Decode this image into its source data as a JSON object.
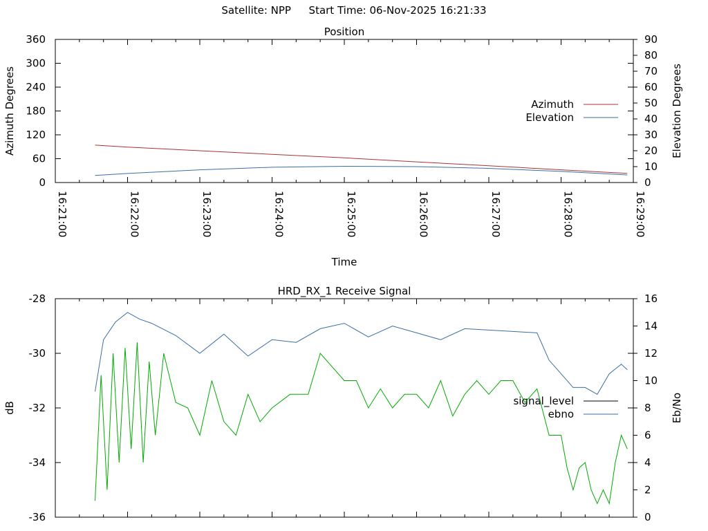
{
  "header": {
    "satellite_label": "Satellite: NPP",
    "start_time_label": "Start Time: 06-Nov-2025 16:21:33"
  },
  "chart_data": [
    {
      "type": "line",
      "title": "Position",
      "xlabel": "Time",
      "ylabel": "Azimuth Degrees",
      "y2label": "Elevation Degrees",
      "x_ticks": [
        "16:21:00",
        "16:22:00",
        "16:23:00",
        "16:24:00",
        "16:25:00",
        "16:26:00",
        "16:27:00",
        "16:28:00",
        "16:29:00"
      ],
      "xlim": [
        "16:21:00",
        "16:29:00"
      ],
      "ylim": [
        0,
        360
      ],
      "y_ticks": [
        0,
        60,
        120,
        180,
        240,
        300,
        360
      ],
      "y2lim": [
        0,
        90
      ],
      "y2_ticks": [
        0,
        10,
        20,
        30,
        40,
        50,
        60,
        70,
        80,
        90
      ],
      "legend_position": "right",
      "grid": false,
      "series": [
        {
          "name": "Azimuth",
          "axis": "left",
          "color": "#a83232",
          "x": [
            "16:21:33",
            "16:22:00",
            "16:23:00",
            "16:24:00",
            "16:25:00",
            "16:26:00",
            "16:27:00",
            "16:28:00",
            "16:28:55"
          ],
          "values": [
            94,
            89,
            80,
            71,
            62,
            52,
            42,
            32,
            23
          ]
        },
        {
          "name": "Elevation",
          "axis": "right",
          "color": "#3a6ea5",
          "x": [
            "16:21:33",
            "16:22:00",
            "16:23:00",
            "16:24:00",
            "16:25:00",
            "16:26:00",
            "16:27:00",
            "16:28:00",
            "16:28:55"
          ],
          "values": [
            4.5,
            5.7,
            8.0,
            9.6,
            10.2,
            10.0,
            8.9,
            7.0,
            4.8
          ]
        }
      ]
    },
    {
      "type": "line",
      "title": "HRD_RX_1 Receive Signal",
      "xlabel": "",
      "ylabel": "dB",
      "y2label": "Eb/No",
      "xlim": [
        "16:21:00",
        "16:29:00"
      ],
      "ylim": [
        -36,
        -28
      ],
      "y_ticks": [
        -36,
        -34,
        -32,
        -30,
        -28
      ],
      "y2lim": [
        0,
        16
      ],
      "y2_ticks": [
        0,
        2,
        4,
        6,
        8,
        10,
        12,
        14,
        16
      ],
      "legend_position": "right",
      "grid": false,
      "series": [
        {
          "name": "signal_level",
          "axis": "left",
          "color": "#000000",
          "x": [],
          "values": []
        },
        {
          "name": "ebno",
          "axis": "right",
          "color": "#3a6ea5",
          "x": [
            "16:21:33",
            "16:21:40",
            "16:21:50",
            "16:22:00",
            "16:22:10",
            "16:22:20",
            "16:22:40",
            "16:23:00",
            "16:23:20",
            "16:23:40",
            "16:24:00",
            "16:24:20",
            "16:24:40",
            "16:25:00",
            "16:25:20",
            "16:25:40",
            "16:26:00",
            "16:26:20",
            "16:26:40",
            "16:27:00",
            "16:27:20",
            "16:27:40",
            "16:27:50",
            "16:28:00",
            "16:28:10",
            "16:28:20",
            "16:28:30",
            "16:28:40",
            "16:28:50",
            "16:28:55"
          ],
          "values": [
            9.2,
            13.0,
            14.3,
            15.0,
            14.5,
            14.2,
            13.3,
            12.0,
            13.4,
            11.8,
            13.0,
            12.8,
            13.8,
            14.2,
            13.2,
            14.0,
            13.5,
            13.0,
            13.8,
            13.7,
            13.6,
            13.5,
            11.5,
            10.5,
            9.5,
            9.5,
            9.0,
            10.5,
            11.2,
            10.8
          ]
        },
        {
          "name": "",
          "axis": "left",
          "color": "#00aa00",
          "x": [
            "16:21:33",
            "16:21:38",
            "16:21:43",
            "16:21:48",
            "16:21:53",
            "16:21:58",
            "16:22:03",
            "16:22:08",
            "16:22:13",
            "16:22:18",
            "16:22:23",
            "16:22:30",
            "16:22:40",
            "16:22:50",
            "16:23:00",
            "16:23:10",
            "16:23:20",
            "16:23:30",
            "16:23:40",
            "16:23:50",
            "16:24:00",
            "16:24:15",
            "16:24:30",
            "16:24:40",
            "16:24:50",
            "16:25:00",
            "16:25:10",
            "16:25:20",
            "16:25:30",
            "16:25:40",
            "16:25:50",
            "16:26:00",
            "16:26:10",
            "16:26:20",
            "16:26:30",
            "16:26:40",
            "16:26:50",
            "16:27:00",
            "16:27:10",
            "16:27:20",
            "16:27:30",
            "16:27:40",
            "16:27:50",
            "16:28:00",
            "16:28:05",
            "16:28:10",
            "16:28:15",
            "16:28:20",
            "16:28:25",
            "16:28:30",
            "16:28:35",
            "16:28:40",
            "16:28:45",
            "16:28:50",
            "16:28:55"
          ],
          "values": [
            -35.4,
            -30.8,
            -35.0,
            -30.0,
            -34.0,
            -29.8,
            -33.5,
            -29.6,
            -34.0,
            -30.3,
            -33.0,
            -30.0,
            -31.8,
            -32.0,
            -33.0,
            -31.0,
            -32.5,
            -33.0,
            -31.5,
            -32.5,
            -32.0,
            -31.5,
            -31.5,
            -30.0,
            -30.5,
            -31.0,
            -31.0,
            -32.0,
            -31.3,
            -32.0,
            -31.5,
            -31.5,
            -32.0,
            -31.0,
            -32.3,
            -31.5,
            -31.0,
            -31.5,
            -31.0,
            -31.0,
            -31.8,
            -31.3,
            -33.0,
            -33.0,
            -34.2,
            -35.0,
            -34.2,
            -34.0,
            -35.0,
            -35.5,
            -35.0,
            -35.5,
            -34.0,
            -33.0,
            -33.5
          ]
        }
      ]
    }
  ]
}
